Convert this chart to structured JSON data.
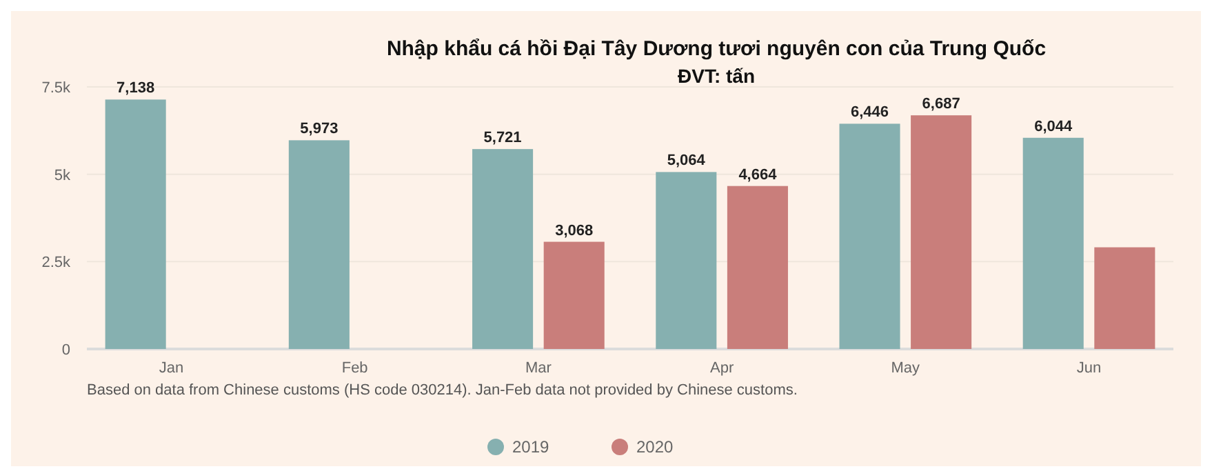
{
  "chart_data": {
    "type": "bar",
    "title": "Nhập khẩu cá hồi Đại Tây Dương tươi nguyên con của Trung Quốc",
    "subtitle": "ĐVT: tấn",
    "categories": [
      "Jan",
      "Feb",
      "Mar",
      "Apr",
      "May",
      "Jun"
    ],
    "series": [
      {
        "name": "2019",
        "color": "#86b0b0",
        "values": [
          7138,
          5973,
          5721,
          5064,
          6446,
          6044
        ],
        "value_labels": [
          "7,138",
          "5,973",
          "5,721",
          "5,064",
          "6,446",
          "6,044"
        ]
      },
      {
        "name": "2020",
        "color": "#c97e7b",
        "values": [
          null,
          null,
          3068,
          4664,
          6687,
          2910
        ],
        "value_labels": [
          null,
          null,
          "3,068",
          "4,664",
          "6,687",
          null
        ]
      }
    ],
    "ylim": [
      0,
      7500
    ],
    "yticks": [
      0,
      {
        "value": 2500,
        "label": "2.5k"
      },
      {
        "value": 5000,
        "label": "5k"
      },
      {
        "value": 7500,
        "label": "7.5k"
      }
    ],
    "grid": "y",
    "legend": "bottom",
    "annotations": [
      "Based on data from Chinese customs (HS code 030214). Jan-Feb data not provided by Chinese customs."
    ]
  }
}
